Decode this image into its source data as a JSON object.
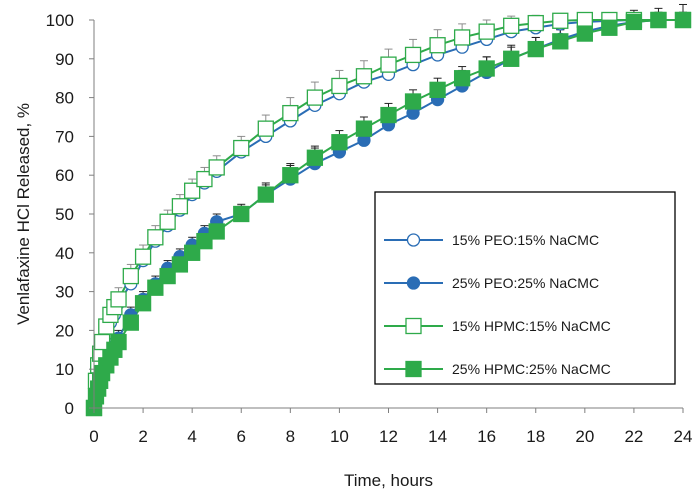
{
  "chart_data": {
    "type": "line",
    "title": "",
    "xlabel": "Time, hours",
    "ylabel": "Venlafaxine HCl Released, %",
    "xlim": [
      0,
      24
    ],
    "ylim": [
      0,
      100
    ],
    "x_ticks": [
      "0",
      "2",
      "4",
      "6",
      "8",
      "10",
      "12",
      "14",
      "16",
      "18",
      "20",
      "22",
      "24"
    ],
    "y_ticks": [
      "0",
      "10",
      "20",
      "30",
      "40",
      "50",
      "60",
      "70",
      "80",
      "90",
      "100"
    ],
    "grid": false,
    "legend_position": "center-right",
    "x": [
      0,
      0.08,
      0.17,
      0.25,
      0.33,
      0.5,
      0.67,
      0.83,
      1,
      1.5,
      2,
      2.5,
      3,
      3.5,
      4,
      4.5,
      5,
      6,
      7,
      8,
      9,
      10,
      11,
      12,
      13,
      14,
      15,
      16,
      17,
      18,
      19,
      20,
      21,
      22,
      23,
      24
    ],
    "series": [
      {
        "name": "15% PEO:15% NaCMC",
        "color": "#2a6db5",
        "marker": "circle-open",
        "values": [
          0,
          6,
          9,
          12,
          15,
          19,
          22,
          24,
          27,
          32,
          38,
          43,
          47,
          51,
          55,
          58,
          61,
          66,
          70,
          74,
          78,
          81,
          84,
          86,
          88.5,
          91,
          93,
          95,
          97,
          98,
          99,
          99.5,
          99.8,
          100,
          100,
          100
        ],
        "error": [
          0,
          1,
          1,
          1.5,
          1.5,
          2,
          2,
          2,
          2,
          2,
          2,
          2,
          2,
          2,
          2,
          2,
          2,
          2,
          2,
          2,
          2,
          2,
          2,
          2,
          2,
          2,
          2,
          2,
          2,
          1.5,
          1.5,
          1.5,
          1.5,
          1,
          1,
          1
        ]
      },
      {
        "name": "25% PEO:25% NaCMC",
        "color": "#2a6db5",
        "marker": "circle-filled",
        "values": [
          0,
          3,
          5,
          7,
          9,
          12,
          14,
          16,
          18,
          24,
          28,
          32,
          36,
          39,
          42,
          45,
          48,
          50,
          55,
          59,
          63,
          66,
          69,
          73,
          76,
          79.5,
          83,
          86.5,
          90,
          92.5,
          95,
          97,
          98.5,
          99.5,
          100,
          100
        ],
        "error": [
          0,
          1,
          1,
          1,
          1.5,
          1.5,
          1.5,
          2,
          2,
          2,
          2,
          2,
          2,
          2,
          2,
          2,
          2,
          2.5,
          3,
          3.5,
          4,
          4,
          4,
          4,
          4,
          4,
          4,
          4,
          3.5,
          3,
          2.5,
          2,
          2,
          2,
          2,
          2
        ]
      },
      {
        "name": "15% HPMC:15% NaCMC",
        "color": "#2eaa4a",
        "marker": "square-open",
        "values": [
          0,
          7,
          11,
          14,
          17,
          21,
          24,
          26,
          28,
          34,
          39,
          44,
          48,
          52,
          56,
          59,
          62,
          67,
          72,
          76,
          80,
          83,
          85.5,
          88.5,
          91,
          93.5,
          95.5,
          97,
          98.5,
          99.2,
          99.8,
          100,
          100,
          100,
          100,
          100
        ],
        "error": [
          0,
          1,
          1.5,
          1.5,
          2,
          2,
          2,
          2,
          3,
          3,
          3,
          3,
          3,
          3,
          3,
          3,
          3,
          3,
          3.5,
          4,
          4,
          4,
          4,
          4,
          4,
          4,
          3.5,
          3,
          2.5,
          2,
          1.5,
          1.5,
          1.5,
          1.5,
          1,
          1
        ]
      },
      {
        "name": "25% HPMC:25% NaCMC",
        "color": "#2eaa4a",
        "marker": "square-filled",
        "values": [
          0,
          3,
          5,
          7,
          9,
          11,
          13,
          15,
          17,
          22,
          27,
          31,
          34,
          37,
          40,
          43,
          45.5,
          50,
          55,
          60,
          64.5,
          68.5,
          72,
          75.5,
          79,
          82,
          85,
          87.5,
          90,
          92.5,
          94.5,
          96.5,
          98,
          99.5,
          100,
          100
        ],
        "error": [
          0,
          1,
          1,
          1,
          1,
          1.5,
          1.5,
          1.5,
          1.5,
          2,
          2,
          2,
          2,
          2,
          2,
          2,
          2,
          2,
          2.5,
          3,
          3,
          3,
          3,
          3,
          3,
          3,
          3,
          3,
          3,
          3,
          3,
          3,
          3,
          3,
          3,
          4
        ]
      }
    ]
  }
}
